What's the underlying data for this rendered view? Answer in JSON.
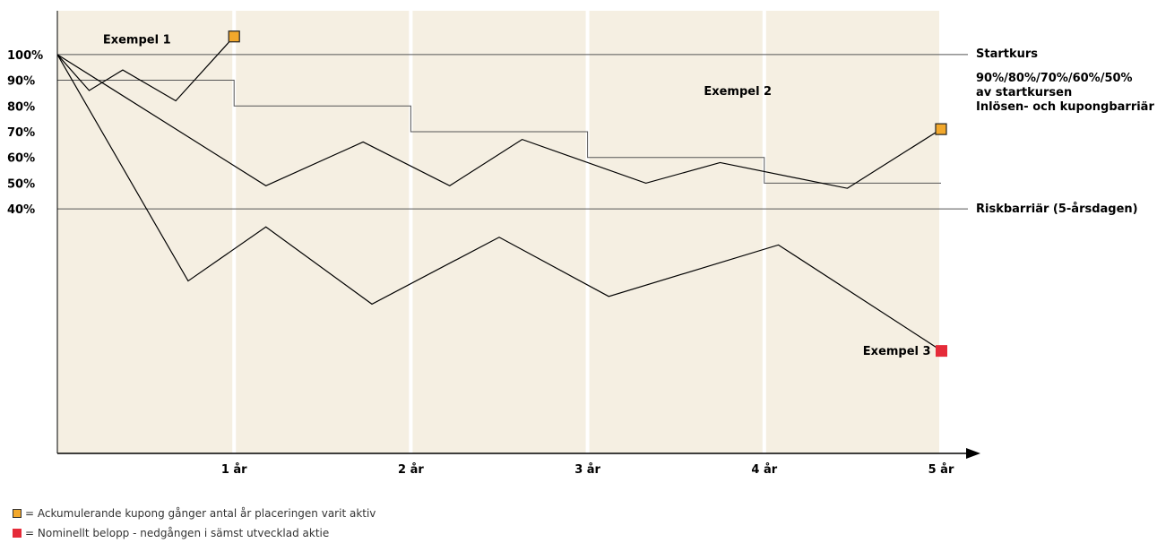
{
  "colors": {
    "background": "#f5efe2",
    "coupon_marker": "#f2a82c",
    "loss_marker": "#e52b39",
    "line": "#000000",
    "gridline": "#ffffff"
  },
  "legend": [
    {
      "icon": "orange-square-icon",
      "color": "#f2a82c",
      "text": "= Ackumulerande kupong gånger antal år placeringen varit aktiv"
    },
    {
      "icon": "red-square-icon",
      "color": "#e52b39",
      "text": "= Nominellt belopp - nedgången i sämst utvecklad aktie"
    }
  ],
  "chart_data": {
    "type": "line",
    "title": "",
    "xlabel": "",
    "ylabel": "",
    "xlim": [
      0,
      5
    ],
    "ylim": [
      -0.55,
      1.17
    ],
    "x_ticks": [
      {
        "x": 1,
        "label": "1 år"
      },
      {
        "x": 2,
        "label": "2 år"
      },
      {
        "x": 3,
        "label": "3 år"
      },
      {
        "x": 4,
        "label": "4 år"
      },
      {
        "x": 5,
        "label": "5 år"
      }
    ],
    "y_ticks": [
      {
        "y": 1.0,
        "label": "100%"
      },
      {
        "y": 0.9,
        "label": "90%"
      },
      {
        "y": 0.8,
        "label": "80%"
      },
      {
        "y": 0.7,
        "label": "70%"
      },
      {
        "y": 0.6,
        "label": "60%"
      },
      {
        "y": 0.5,
        "label": "50%"
      },
      {
        "y": 0.4,
        "label": "40%"
      }
    ],
    "vertical_gridlines_at": [
      1,
      2,
      3,
      4,
      5
    ],
    "reference_lines": [
      {
        "y": 1.0,
        "label_lines": [
          "Startkurs"
        ]
      },
      {
        "y": 0.4,
        "label_lines": [
          "Riskbarriär (5-årsdagen)"
        ]
      }
    ],
    "barrier": {
      "label_lines": [
        "90%/80%/70%/60%/50%",
        "av startkursen",
        "Inlösen- och kupongbarriär"
      ],
      "steps": [
        {
          "from": 0,
          "to": 1,
          "y": 0.9
        },
        {
          "from": 1,
          "to": 2,
          "y": 0.8
        },
        {
          "from": 2,
          "to": 3,
          "y": 0.7
        },
        {
          "from": 3,
          "to": 4,
          "y": 0.6
        },
        {
          "from": 4,
          "to": 5,
          "y": 0.5
        }
      ]
    },
    "series": [
      {
        "label": "Exempel 1",
        "points": [
          [
            0,
            1.0
          ],
          [
            0.18,
            0.86
          ],
          [
            0.37,
            0.94
          ],
          [
            0.67,
            0.82
          ],
          [
            1.0,
            1.07
          ]
        ],
        "end_marker": "coupon"
      },
      {
        "label": "Exempel 2",
        "points": [
          [
            0,
            1.0
          ],
          [
            1.18,
            0.49
          ],
          [
            1.73,
            0.66
          ],
          [
            2.22,
            0.49
          ],
          [
            2.63,
            0.67
          ],
          [
            3.33,
            0.5
          ],
          [
            3.75,
            0.58
          ],
          [
            4.47,
            0.48
          ],
          [
            5.0,
            0.71
          ]
        ],
        "end_marker": "coupon"
      },
      {
        "label": "Exempel 3",
        "points": [
          [
            0,
            1.0
          ],
          [
            0.74,
            0.12
          ],
          [
            1.18,
            0.33
          ],
          [
            1.78,
            0.03
          ],
          [
            2.5,
            0.29
          ],
          [
            3.12,
            0.06
          ],
          [
            4.08,
            0.26
          ],
          [
            5.0,
            -0.15
          ]
        ],
        "end_marker": "loss"
      }
    ],
    "annotations": [
      {
        "text": "Exempel 1",
        "x": 0.45,
        "y": 1.06
      },
      {
        "text": "Exempel 2",
        "x": 3.85,
        "y": 0.86
      },
      {
        "text": "Exempel 3",
        "x": 4.75,
        "y": -0.15
      }
    ],
    "grid": true,
    "legend_position": "bottom-left"
  }
}
